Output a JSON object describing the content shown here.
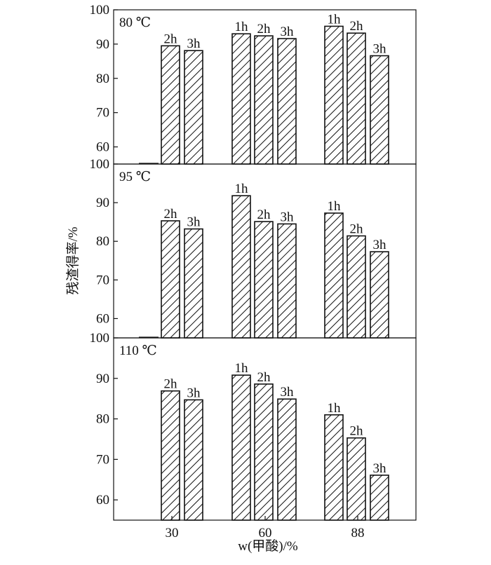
{
  "chart_data": {
    "type": "bar",
    "xlabel": "w(甲酸)/%",
    "ylabel": "残渣得率/%",
    "categories": [
      "30",
      "60",
      "88"
    ],
    "series": [
      {
        "name": "1h"
      },
      {
        "name": "2h"
      },
      {
        "name": "3h"
      }
    ],
    "panels": [
      {
        "label": "80 ℃",
        "ylim": [
          55,
          100
        ],
        "yticks": [
          60,
          70,
          80,
          90,
          100
        ],
        "groups": [
          {
            "category": "30",
            "bars": [
              {
                "series": "2h",
                "value": 89.5
              },
              {
                "series": "3h",
                "value": 88.1
              }
            ]
          },
          {
            "category": "60",
            "bars": [
              {
                "series": "1h",
                "value": 93.0
              },
              {
                "series": "2h",
                "value": 92.4
              },
              {
                "series": "3h",
                "value": 91.6
              }
            ]
          },
          {
            "category": "88",
            "bars": [
              {
                "series": "1h",
                "value": 95.2
              },
              {
                "series": "2h",
                "value": 93.2
              },
              {
                "series": "3h",
                "value": 86.6
              }
            ]
          }
        ]
      },
      {
        "label": "95 ℃",
        "ylim": [
          55,
          100
        ],
        "yticks": [
          60,
          70,
          80,
          90,
          100
        ],
        "groups": [
          {
            "category": "30",
            "bars": [
              {
                "series": "2h",
                "value": 85.3
              },
              {
                "series": "3h",
                "value": 83.2
              }
            ]
          },
          {
            "category": "60",
            "bars": [
              {
                "series": "1h",
                "value": 91.8
              },
              {
                "series": "2h",
                "value": 85.1
              },
              {
                "series": "3h",
                "value": 84.5
              }
            ]
          },
          {
            "category": "88",
            "bars": [
              {
                "series": "1h",
                "value": 87.3
              },
              {
                "series": "2h",
                "value": 81.4
              },
              {
                "series": "3h",
                "value": 77.3
              }
            ]
          }
        ]
      },
      {
        "label": "110 ℃",
        "ylim": [
          55,
          100
        ],
        "yticks": [
          60,
          70,
          80,
          90,
          100
        ],
        "groups": [
          {
            "category": "30",
            "bars": [
              {
                "series": "2h",
                "value": 86.9
              },
              {
                "series": "3h",
                "value": 84.7
              }
            ]
          },
          {
            "category": "60",
            "bars": [
              {
                "series": "1h",
                "value": 90.8
              },
              {
                "series": "2h",
                "value": 88.6
              },
              {
                "series": "3h",
                "value": 84.9
              }
            ]
          },
          {
            "category": "88",
            "bars": [
              {
                "series": "1h",
                "value": 81.0
              },
              {
                "series": "2h",
                "value": 75.3
              },
              {
                "series": "3h",
                "value": 66.1
              }
            ]
          }
        ]
      }
    ],
    "bar_fill": "hatched",
    "bar_color": "#111111",
    "background": "#ffffff",
    "grid": false,
    "legend": "none"
  }
}
